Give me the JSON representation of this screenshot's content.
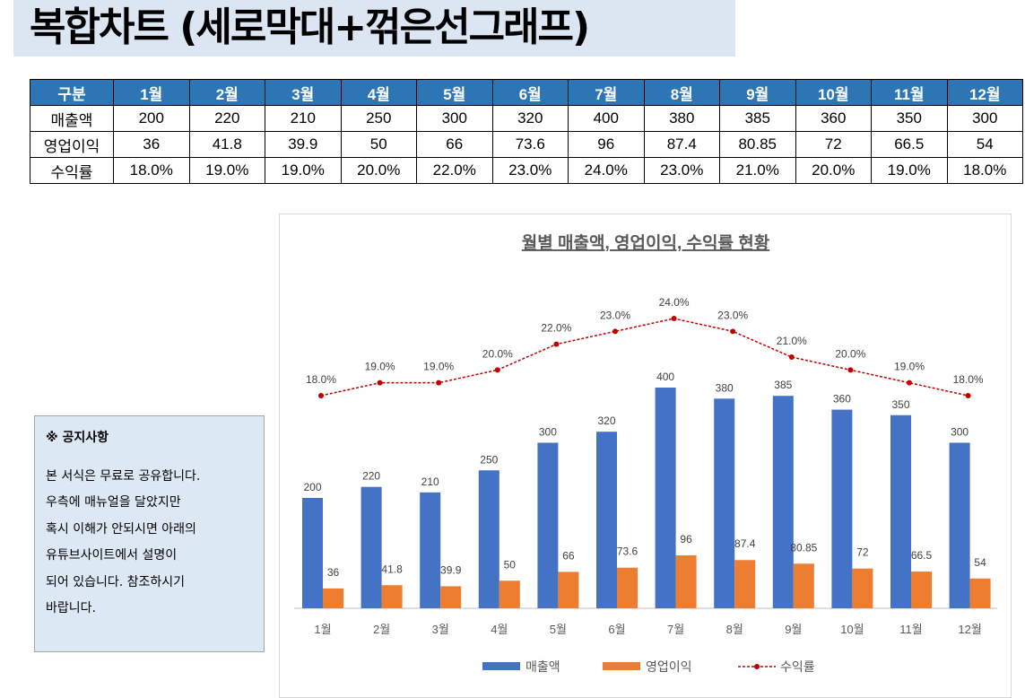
{
  "page_title": "복합차트 (세로막대+꺾은선그래프)",
  "table": {
    "header": [
      "구분",
      "1월",
      "2월",
      "3월",
      "4월",
      "5월",
      "6월",
      "7월",
      "8월",
      "9월",
      "10월",
      "11월",
      "12월"
    ],
    "rows": [
      [
        "매출액",
        "200",
        "220",
        "210",
        "250",
        "300",
        "320",
        "400",
        "380",
        "385",
        "360",
        "350",
        "300"
      ],
      [
        "영업이익",
        "36",
        "41.8",
        "39.9",
        "50",
        "66",
        "73.6",
        "96",
        "87.4",
        "80.85",
        "72",
        "66.5",
        "54"
      ],
      [
        "수익률",
        "18.0%",
        "19.0%",
        "19.0%",
        "20.0%",
        "22.0%",
        "23.0%",
        "24.0%",
        "23.0%",
        "21.0%",
        "20.0%",
        "19.0%",
        "18.0%"
      ]
    ]
  },
  "notice": {
    "title": "※ 공지사항",
    "lines": [
      "본 서식은 무료로 공유합니다.",
      "우측에 매뉴얼을 달았지만",
      "혹시 이해가 안되시면 아래의",
      "유튜브사이트에서 설명이",
      "되어 있습니다. 참조하시기",
      "바랍니다."
    ]
  },
  "chart_data": {
    "type": "bar+line",
    "title": "월별 매출액, 영업이익, 수익률 현황",
    "categories": [
      "1월",
      "2월",
      "3월",
      "4월",
      "5월",
      "6월",
      "7월",
      "8월",
      "9월",
      "10월",
      "11월",
      "12월"
    ],
    "series": [
      {
        "name": "매출액",
        "type": "bar",
        "color": "#4472c4",
        "values": [
          200,
          220,
          210,
          250,
          300,
          320,
          400,
          380,
          385,
          360,
          350,
          300
        ],
        "labels": [
          "200",
          "220",
          "210",
          "250",
          "300",
          "320",
          "400",
          "380",
          "385",
          "360",
          "350",
          "300"
        ]
      },
      {
        "name": "영업이익",
        "type": "bar",
        "color": "#ed7d31",
        "values": [
          36,
          41.8,
          39.9,
          50,
          66,
          73.6,
          96,
          87.4,
          80.85,
          72,
          66.5,
          54
        ],
        "labels": [
          "36",
          "41.8",
          "39.9",
          "50",
          "66",
          "73.6",
          "96",
          "87.4",
          "80.85",
          "72",
          "66.5",
          "54"
        ]
      },
      {
        "name": "수익률",
        "type": "line",
        "axis": "secondary",
        "color": "#c00000",
        "style": "dashed-with-markers",
        "values": [
          18,
          19,
          19,
          20,
          22,
          23,
          24,
          23,
          21,
          20,
          19,
          18
        ],
        "labels": [
          "18.0%",
          "19.0%",
          "19.0%",
          "20.0%",
          "22.0%",
          "23.0%",
          "24.0%",
          "23.0%",
          "21.0%",
          "20.0%",
          "19.0%",
          "18.0%"
        ]
      }
    ],
    "legend": "bottom",
    "grid": false,
    "value_axis_visible": false
  }
}
